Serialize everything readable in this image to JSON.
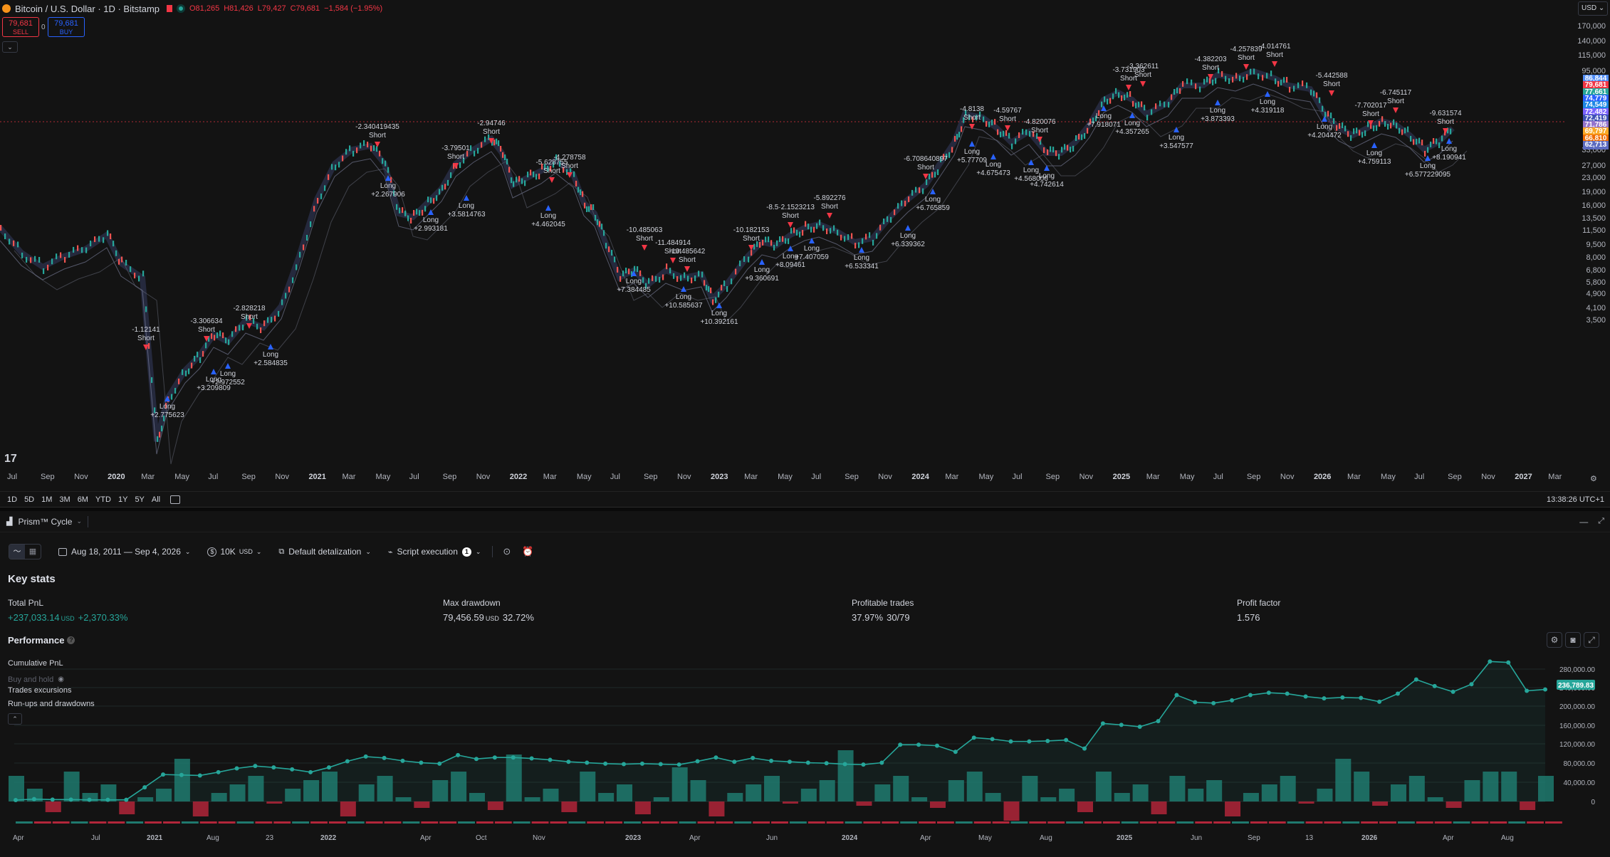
{
  "symbol": {
    "title": "Bitcoin / U.S. Dollar · 1D · Bitstamp",
    "ohlc": {
      "o": "O81,265",
      "h": "H81,426",
      "l": "L79,427",
      "c": "C79,681",
      "chg": "−1,584 (−1.95%)"
    },
    "sell_price": "79,681",
    "sell_label": "SELL",
    "buy_price": "79,681",
    "buy_label": "BUY",
    "spread": "0",
    "currency": "USD"
  },
  "price_axis": {
    "labels": [
      "170,000",
      "140,000",
      "115,000",
      "95,000",
      "33,000",
      "27,000",
      "23,000",
      "19,000",
      "16,000",
      "13,500",
      "11,500",
      "9,500",
      "8,000",
      "6,800",
      "5,800",
      "4,900",
      "4,100",
      "3,500"
    ],
    "badges": [
      {
        "text": "86,844",
        "color": "#4f8cf7"
      },
      {
        "text": "79,681",
        "color": "#f23645"
      },
      {
        "text": "77,661",
        "color": "#26a69a"
      },
      {
        "text": "74,779",
        "color": "#2962ff"
      },
      {
        "text": "74,549",
        "color": "#1e88e5"
      },
      {
        "text": "72,482",
        "color": "#7b61ff"
      },
      {
        "text": "72,419",
        "color": "#3f51b5"
      },
      {
        "text": "71,786",
        "color": "#9575cd"
      },
      {
        "text": "69,797",
        "color": "#f9a825"
      },
      {
        "text": "66,810",
        "color": "#ef6c00"
      },
      {
        "text": "62,713",
        "color": "#5c6bc0"
      }
    ]
  },
  "time_axis": [
    "Jul",
    "Sep",
    "Nov",
    "2020",
    "Mar",
    "May",
    "Jul",
    "Sep",
    "Nov",
    "2021",
    "Mar",
    "May",
    "Jul",
    "Sep",
    "Nov",
    "2022",
    "Mar",
    "May",
    "Jul",
    "Sep",
    "Nov",
    "2023",
    "Mar",
    "May",
    "Jul",
    "Sep",
    "Nov",
    "2024",
    "Mar",
    "May",
    "Jul",
    "Sep",
    "Nov",
    "2025",
    "Mar",
    "May",
    "Jul",
    "Sep",
    "Nov",
    "2026",
    "Mar",
    "May",
    "Jul",
    "Sep",
    "Nov",
    "2027",
    "Mar"
  ],
  "range_bar": {
    "ranges": [
      "1D",
      "5D",
      "1M",
      "3M",
      "6M",
      "YTD",
      "1Y",
      "5Y",
      "All"
    ],
    "clock": "13:38:26 UTC+1"
  },
  "trade_labels": [
    {
      "t": "-1.12141",
      "s": "Short"
    },
    {
      "t": "-3.306634",
      "s": "Short"
    },
    {
      "t": "-2.828218",
      "s": "Short"
    },
    {
      "t": "-2.340419435",
      "s": "Short"
    },
    {
      "t": "-2.94746",
      "s": "Short"
    },
    {
      "t": "-3.79501",
      "s": "Short"
    },
    {
      "t": "-5.628755",
      "s": "Short"
    },
    {
      "t": "-4.278758",
      "s": "Short"
    },
    {
      "t": "-10.485063",
      "s": "Short"
    },
    {
      "t": "-11.484914",
      "s": "Short"
    },
    {
      "t": "-10.485642",
      "s": "Short"
    },
    {
      "t": "-10.182153",
      "s": "Short"
    },
    {
      "t": "-8.5·2.1523213",
      "s": "Short"
    },
    {
      "t": "-5.892276",
      "s": "Short"
    },
    {
      "t": "-6.708640897",
      "s": "Short"
    },
    {
      "t": "-4.8138",
      "s": "Short"
    },
    {
      "t": "-4.59767",
      "s": "Short"
    },
    {
      "t": "-4.820076",
      "s": "Short"
    },
    {
      "t": "-3.731903",
      "s": "Short"
    },
    {
      "t": "-3.362611",
      "s": "Short"
    },
    {
      "t": "-4.382203",
      "s": "Short"
    },
    {
      "t": "-4.257839",
      "s": "Short"
    },
    {
      "t": "-4.014761",
      "s": "Short"
    },
    {
      "t": "-5.442588",
      "s": "Short"
    },
    {
      "t": "-7.702017",
      "s": "Short"
    },
    {
      "t": "-6.745117",
      "s": "Short"
    },
    {
      "t": "-9.631574",
      "s": "Short"
    }
  ],
  "long_labels": [
    {
      "t": "+2.775623",
      "s": "Long"
    },
    {
      "t": "+3.209809",
      "s": "Long"
    },
    {
      "t": "+2.972552",
      "s": "Long"
    },
    {
      "t": "+2.584835",
      "s": "Long"
    },
    {
      "t": "+2.267906",
      "s": "Long"
    },
    {
      "t": "+2.993181",
      "s": "Long"
    },
    {
      "t": "+3.5814763",
      "s": "Long"
    },
    {
      "t": "+4.462045",
      "s": "Long"
    },
    {
      "t": "+7.384485",
      "s": "Long"
    },
    {
      "t": "+10.585637",
      "s": "Long"
    },
    {
      "t": "+10.392161",
      "s": "Long"
    },
    {
      "t": "+9.360691",
      "s": "Long"
    },
    {
      "t": "+8.09461",
      "s": "Long"
    },
    {
      "t": "+7.407059",
      "s": "Long"
    },
    {
      "t": "+6.533341",
      "s": "Long"
    },
    {
      "t": "+6.339362",
      "s": "Long"
    },
    {
      "t": "+6.765859",
      "s": "Long"
    },
    {
      "t": "+5.77709",
      "s": "Long"
    },
    {
      "t": "+4.675473",
      "s": "Long"
    },
    {
      "t": "+4.568006",
      "s": "Long"
    },
    {
      "t": "+4.742614",
      "s": "Long"
    },
    {
      "t": "+4.357265",
      "s": "Long"
    },
    {
      "t": "+3.547577",
      "s": "Long"
    },
    {
      "t": "+3.873393",
      "s": "Long"
    },
    {
      "t": "+4.319118",
      "s": "Long"
    },
    {
      "t": "+4.204472",
      "s": "Long"
    },
    {
      "t": "+4.759113",
      "s": "Long"
    },
    {
      "t": "+6.577229095",
      "s": "Long"
    },
    {
      "t": "+8.190941",
      "s": "Long"
    },
    {
      "t": "+7.918071",
      "s": "Long"
    }
  ],
  "panel": {
    "strategy_name": "Prism™ Cycle",
    "date_range": "Aug 18, 2011 — Sep 4, 2026",
    "capital": "10K",
    "capital_unit": "USD",
    "detail": "Default detalization",
    "script_exec": "Script execution",
    "script_badge": "1",
    "key_stats_title": "Key stats",
    "stats": [
      {
        "label": "Total PnL",
        "value": "+237,033.14",
        "unit": "USD",
        "extra": "+2,370.33%",
        "color": "#26a69a"
      },
      {
        "label": "Max drawdown",
        "value": "79,456.59",
        "unit": "USD",
        "extra": "32.72%",
        "color": "#d1d4dc"
      },
      {
        "label": "Profitable trades",
        "value": "37.97%",
        "unit": "",
        "extra": "30/79",
        "color": "#d1d4dc"
      },
      {
        "label": "Profit factor",
        "value": "1.576",
        "unit": "",
        "extra": "",
        "color": "#d1d4dc"
      }
    ],
    "performance_title": "Performance",
    "legend": [
      "Cumulative PnL",
      "Buy and hold",
      "Trades excursions",
      "Run-ups and drawdowns"
    ],
    "perf_axis": [
      "280,000.00",
      "240,000.00",
      "200,000.00",
      "160,000.00",
      "120,000.00",
      "80,000.00",
      "40,000.00",
      "0"
    ],
    "perf_badge": "236,789.83",
    "perf_time": [
      "Apr",
      "Jul",
      "2021",
      "Aug",
      "23",
      "2022",
      "Apr",
      "Oct",
      "Nov",
      "2023",
      "Apr",
      "Jun",
      "2024",
      "Apr",
      "May",
      "Aug",
      "2025",
      "Jun",
      "Sep",
      "13",
      "2026",
      "Apr",
      "Aug"
    ]
  },
  "colors": {
    "up": "#26a69a",
    "down": "#f23645",
    "accent": "#2962ff",
    "bg": "#131313"
  }
}
